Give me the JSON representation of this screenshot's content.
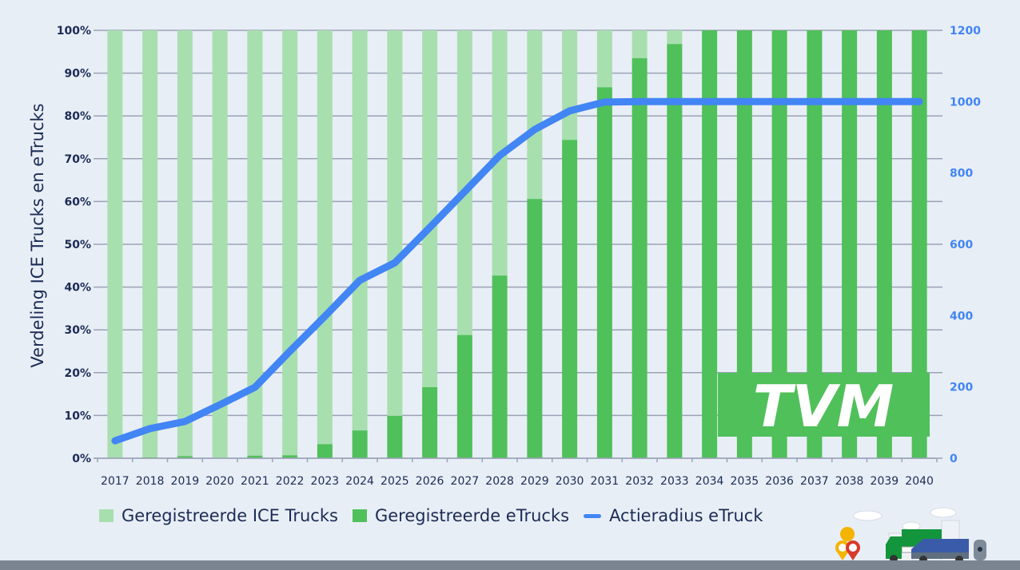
{
  "chart_data": {
    "type": "bar",
    "subtype": "stacked-bar-with-line-secondary-axis",
    "categories": [
      "2017",
      "2018",
      "2019",
      "2020",
      "2021",
      "2022",
      "2023",
      "2024",
      "2025",
      "2026",
      "2027",
      "2028",
      "2029",
      "2030",
      "2031",
      "2032",
      "2033",
      "2034",
      "2035",
      "2036",
      "2037",
      "2038",
      "2039",
      "2040"
    ],
    "series": [
      {
        "name": "Geregistreerde ICE Trucks",
        "type": "bar",
        "axis": "left",
        "color": "#a8dfae",
        "values": [
          100,
          99.8,
          99.5,
          99.9,
          99.4,
          99.3,
          96.7,
          93.5,
          90.1,
          83.4,
          71.2,
          57.3,
          39.4,
          25.6,
          13.3,
          6.5,
          3.2,
          0,
          0,
          0,
          0,
          0,
          0,
          0
        ]
      },
      {
        "name": "Geregistreerde eTrucks",
        "type": "bar",
        "axis": "left",
        "color": "#50c05a",
        "values": [
          0,
          0.2,
          0.5,
          0.1,
          0.6,
          0.7,
          3.3,
          6.5,
          9.9,
          16.6,
          28.8,
          42.7,
          60.6,
          74.4,
          86.7,
          93.5,
          96.8,
          100,
          100,
          100,
          100,
          100,
          100,
          100
        ]
      },
      {
        "name": "Actieradius eTruck",
        "type": "line",
        "axis": "right",
        "color": "#4285f4",
        "values": [
          49,
          83,
          103,
          150,
          199,
          300,
          398,
          499,
          548,
          647,
          748,
          849,
          922,
          974,
          999,
          1000,
          1000,
          1000,
          1000,
          1000,
          1000,
          1000,
          1000,
          1000
        ]
      }
    ],
    "title": "",
    "xlabel": "",
    "ylabel": "Verdeling ICE Trucks en eTrucks",
    "y2label": "",
    "ylim": [
      0,
      100
    ],
    "y2lim": [
      0,
      1200
    ],
    "yticks": [
      "0%",
      "10%",
      "20%",
      "30%",
      "40%",
      "50%",
      "60%",
      "70%",
      "80%",
      "90%",
      "100%"
    ],
    "y2ticks": [
      "0",
      "200",
      "400",
      "600",
      "800",
      "1000",
      "1200"
    ],
    "grid": true,
    "legend_position": "bottom"
  },
  "legend": {
    "ice": "Geregistreerde ICE Trucks",
    "etruck": "Geregistreerde eTrucks",
    "range": "Actieradius eTruck"
  },
  "logo": {
    "text": "TVM"
  },
  "colors": {
    "background": "#e8eef6",
    "ice": "#a8dfae",
    "etruck": "#50c05a",
    "line": "#4285f4",
    "axis_text": "#1c2b55",
    "right_axis_text": "#4285f4",
    "grid": "#9aa3b6"
  }
}
